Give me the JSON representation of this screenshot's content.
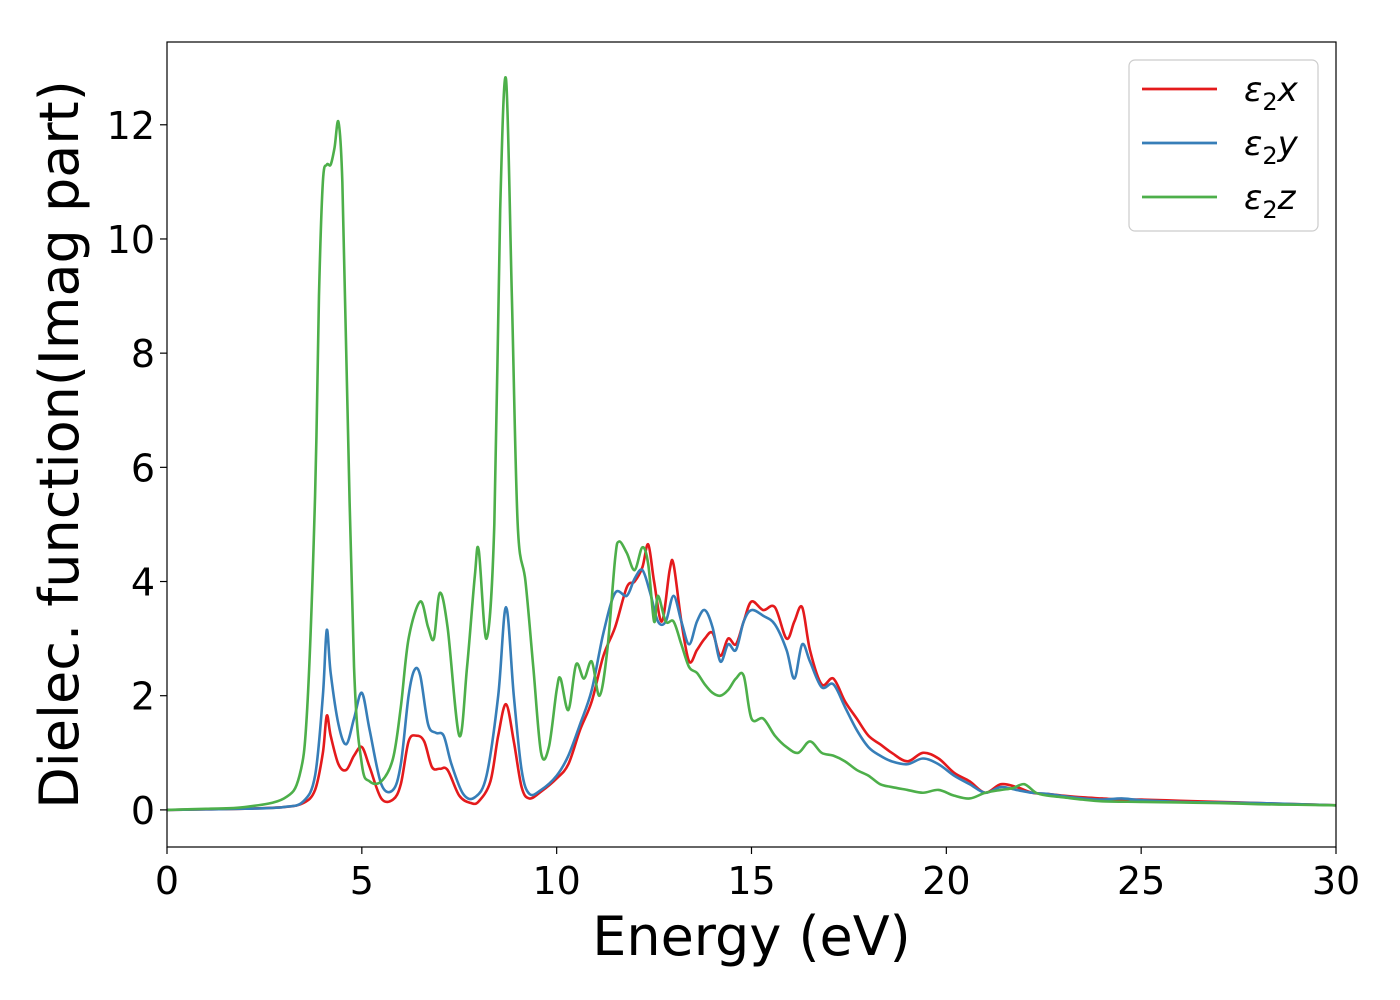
{
  "chart_data": {
    "type": "line",
    "title": "",
    "xlabel": "Energy (eV)",
    "ylabel": "Dielec. function(Imag part)",
    "xlim": [
      0,
      30
    ],
    "ylim": [
      -0.65,
      13.45
    ],
    "xticks": [
      0,
      5,
      10,
      15,
      20,
      25,
      30
    ],
    "yticks": [
      0,
      2,
      4,
      6,
      8,
      10,
      12
    ],
    "grid": false,
    "legend_position": "top-right",
    "series": [
      {
        "name": "ε2x",
        "legend": {
          "base": "ε",
          "sub": "2",
          "suffix": "x"
        },
        "color": "#e41a1c",
        "x": [
          0,
          1,
          2,
          3,
          3.5,
          3.8,
          4.0,
          4.1,
          4.2,
          4.4,
          4.6,
          4.8,
          5.0,
          5.2,
          5.5,
          5.8,
          6.0,
          6.2,
          6.4,
          6.6,
          6.8,
          7.0,
          7.2,
          7.5,
          7.8,
          8.0,
          8.3,
          8.5,
          8.7,
          8.9,
          9.1,
          9.3,
          9.6,
          10.0,
          10.3,
          10.6,
          10.9,
          11.2,
          11.5,
          11.8,
          12.0,
          12.2,
          12.35,
          12.5,
          12.7,
          12.9,
          13.0,
          13.2,
          13.4,
          13.6,
          13.8,
          14.0,
          14.2,
          14.4,
          14.6,
          14.8,
          15.0,
          15.3,
          15.6,
          15.9,
          16.1,
          16.3,
          16.5,
          16.8,
          17.1,
          17.4,
          17.7,
          18.0,
          18.3,
          18.6,
          19.0,
          19.4,
          19.8,
          20.2,
          20.6,
          21.0,
          21.4,
          21.8,
          22.2,
          22.6,
          23.0,
          23.5,
          24.0,
          24.5,
          25.0,
          26.0,
          27.0,
          28.0,
          29.0,
          30.0
        ],
        "y": [
          0.0,
          0.01,
          0.02,
          0.05,
          0.12,
          0.35,
          1.0,
          1.65,
          1.3,
          0.8,
          0.7,
          0.95,
          1.1,
          0.75,
          0.2,
          0.18,
          0.45,
          1.2,
          1.3,
          1.2,
          0.75,
          0.72,
          0.7,
          0.25,
          0.12,
          0.15,
          0.5,
          1.3,
          1.85,
          1.2,
          0.4,
          0.2,
          0.32,
          0.55,
          0.8,
          1.4,
          1.9,
          2.7,
          3.2,
          3.9,
          4.0,
          4.25,
          4.65,
          4.0,
          3.3,
          4.2,
          4.3,
          3.3,
          2.6,
          2.8,
          3.0,
          3.1,
          2.7,
          3.0,
          2.9,
          3.3,
          3.65,
          3.5,
          3.55,
          3.0,
          3.3,
          3.55,
          2.8,
          2.2,
          2.3,
          1.9,
          1.6,
          1.3,
          1.15,
          1.0,
          0.85,
          1.0,
          0.9,
          0.65,
          0.5,
          0.3,
          0.45,
          0.4,
          0.3,
          0.28,
          0.25,
          0.22,
          0.2,
          0.18,
          0.18,
          0.16,
          0.14,
          0.12,
          0.1,
          0.08
        ]
      },
      {
        "name": "ε2y",
        "legend": {
          "base": "ε",
          "sub": "2",
          "suffix": "y"
        },
        "color": "#377eb8",
        "x": [
          0,
          1,
          2,
          3,
          3.5,
          3.8,
          4.0,
          4.1,
          4.2,
          4.4,
          4.6,
          4.8,
          5.0,
          5.2,
          5.5,
          5.8,
          6.0,
          6.2,
          6.35,
          6.5,
          6.7,
          6.9,
          7.1,
          7.3,
          7.6,
          7.9,
          8.2,
          8.5,
          8.7,
          8.9,
          9.1,
          9.3,
          9.6,
          10.0,
          10.3,
          10.6,
          10.9,
          11.2,
          11.5,
          11.8,
          12.0,
          12.2,
          12.4,
          12.6,
          12.8,
          13.0,
          13.2,
          13.4,
          13.6,
          13.8,
          14.0,
          14.2,
          14.4,
          14.6,
          14.8,
          15.0,
          15.3,
          15.6,
          15.9,
          16.1,
          16.3,
          16.5,
          16.8,
          17.1,
          17.4,
          17.7,
          18.0,
          18.3,
          18.6,
          19.0,
          19.4,
          19.8,
          20.2,
          20.6,
          21.0,
          21.4,
          21.8,
          22.2,
          22.6,
          23.0,
          23.5,
          24.0,
          24.5,
          25.0,
          26.0,
          27.0,
          28.0,
          29.0,
          30.0
        ],
        "y": [
          0.0,
          0.01,
          0.02,
          0.05,
          0.15,
          0.6,
          2.0,
          3.15,
          2.4,
          1.5,
          1.15,
          1.6,
          2.05,
          1.4,
          0.45,
          0.35,
          0.8,
          2.0,
          2.45,
          2.35,
          1.5,
          1.35,
          1.3,
          0.8,
          0.28,
          0.22,
          0.6,
          2.0,
          3.55,
          2.0,
          0.7,
          0.28,
          0.35,
          0.6,
          0.95,
          1.5,
          2.1,
          3.1,
          3.8,
          3.75,
          4.05,
          4.2,
          3.8,
          3.3,
          3.3,
          3.75,
          3.3,
          2.9,
          3.3,
          3.5,
          3.2,
          2.6,
          2.9,
          2.8,
          3.3,
          3.5,
          3.4,
          3.25,
          2.8,
          2.3,
          2.9,
          2.6,
          2.15,
          2.2,
          1.8,
          1.4,
          1.1,
          0.95,
          0.85,
          0.8,
          0.9,
          0.8,
          0.6,
          0.45,
          0.3,
          0.4,
          0.35,
          0.3,
          0.28,
          0.24,
          0.2,
          0.18,
          0.2,
          0.17,
          0.14,
          0.13,
          0.12,
          0.1,
          0.08
        ]
      },
      {
        "name": "ε2z",
        "legend": {
          "base": "ε",
          "sub": "2",
          "suffix": "z"
        },
        "color": "#4daf4a",
        "x": [
          0,
          1,
          2,
          3,
          3.4,
          3.6,
          3.8,
          3.9,
          4.0,
          4.1,
          4.2,
          4.3,
          4.4,
          4.5,
          4.6,
          4.8,
          5.0,
          5.2,
          5.5,
          5.8,
          6.0,
          6.2,
          6.5,
          6.7,
          6.85,
          7.0,
          7.2,
          7.5,
          7.7,
          7.9,
          8.0,
          8.2,
          8.4,
          8.55,
          8.7,
          8.85,
          9.0,
          9.2,
          9.4,
          9.6,
          9.8,
          10.0,
          10.1,
          10.3,
          10.5,
          10.7,
          10.9,
          11.1,
          11.3,
          11.5,
          11.6,
          11.8,
          12.0,
          12.2,
          12.35,
          12.5,
          12.6,
          12.8,
          13.0,
          13.2,
          13.4,
          13.6,
          13.8,
          14.0,
          14.2,
          14.4,
          14.6,
          14.8,
          15.0,
          15.3,
          15.6,
          15.9,
          16.2,
          16.5,
          16.8,
          17.1,
          17.4,
          17.7,
          18.0,
          18.3,
          18.6,
          19.0,
          19.4,
          19.8,
          20.2,
          20.6,
          21.0,
          21.4,
          21.7,
          22.0,
          22.3,
          22.6,
          23.0,
          23.5,
          24.0,
          25.0,
          26.0,
          27.0,
          28.0,
          29.0,
          30.0
        ],
        "y": [
          0.0,
          0.02,
          0.05,
          0.2,
          0.6,
          1.8,
          5.5,
          9.0,
          11.0,
          11.3,
          11.3,
          11.6,
          12.05,
          11.0,
          8.0,
          2.5,
          0.8,
          0.5,
          0.5,
          0.9,
          1.8,
          3.0,
          3.65,
          3.2,
          3.0,
          3.8,
          3.2,
          1.3,
          2.5,
          4.1,
          4.55,
          3.0,
          5.0,
          10.5,
          12.8,
          9.0,
          5.0,
          4.0,
          2.5,
          1.0,
          1.1,
          2.1,
          2.3,
          1.75,
          2.55,
          2.3,
          2.6,
          2.0,
          2.8,
          4.4,
          4.7,
          4.5,
          4.2,
          4.6,
          4.3,
          3.3,
          3.75,
          3.3,
          3.3,
          2.9,
          2.5,
          2.4,
          2.2,
          2.05,
          2.0,
          2.1,
          2.3,
          2.35,
          1.6,
          1.6,
          1.3,
          1.1,
          1.0,
          1.2,
          1.0,
          0.95,
          0.85,
          0.7,
          0.6,
          0.45,
          0.4,
          0.35,
          0.3,
          0.35,
          0.25,
          0.2,
          0.3,
          0.35,
          0.38,
          0.45,
          0.3,
          0.25,
          0.22,
          0.18,
          0.15,
          0.14,
          0.13,
          0.12,
          0.1,
          0.09,
          0.08
        ]
      }
    ]
  }
}
